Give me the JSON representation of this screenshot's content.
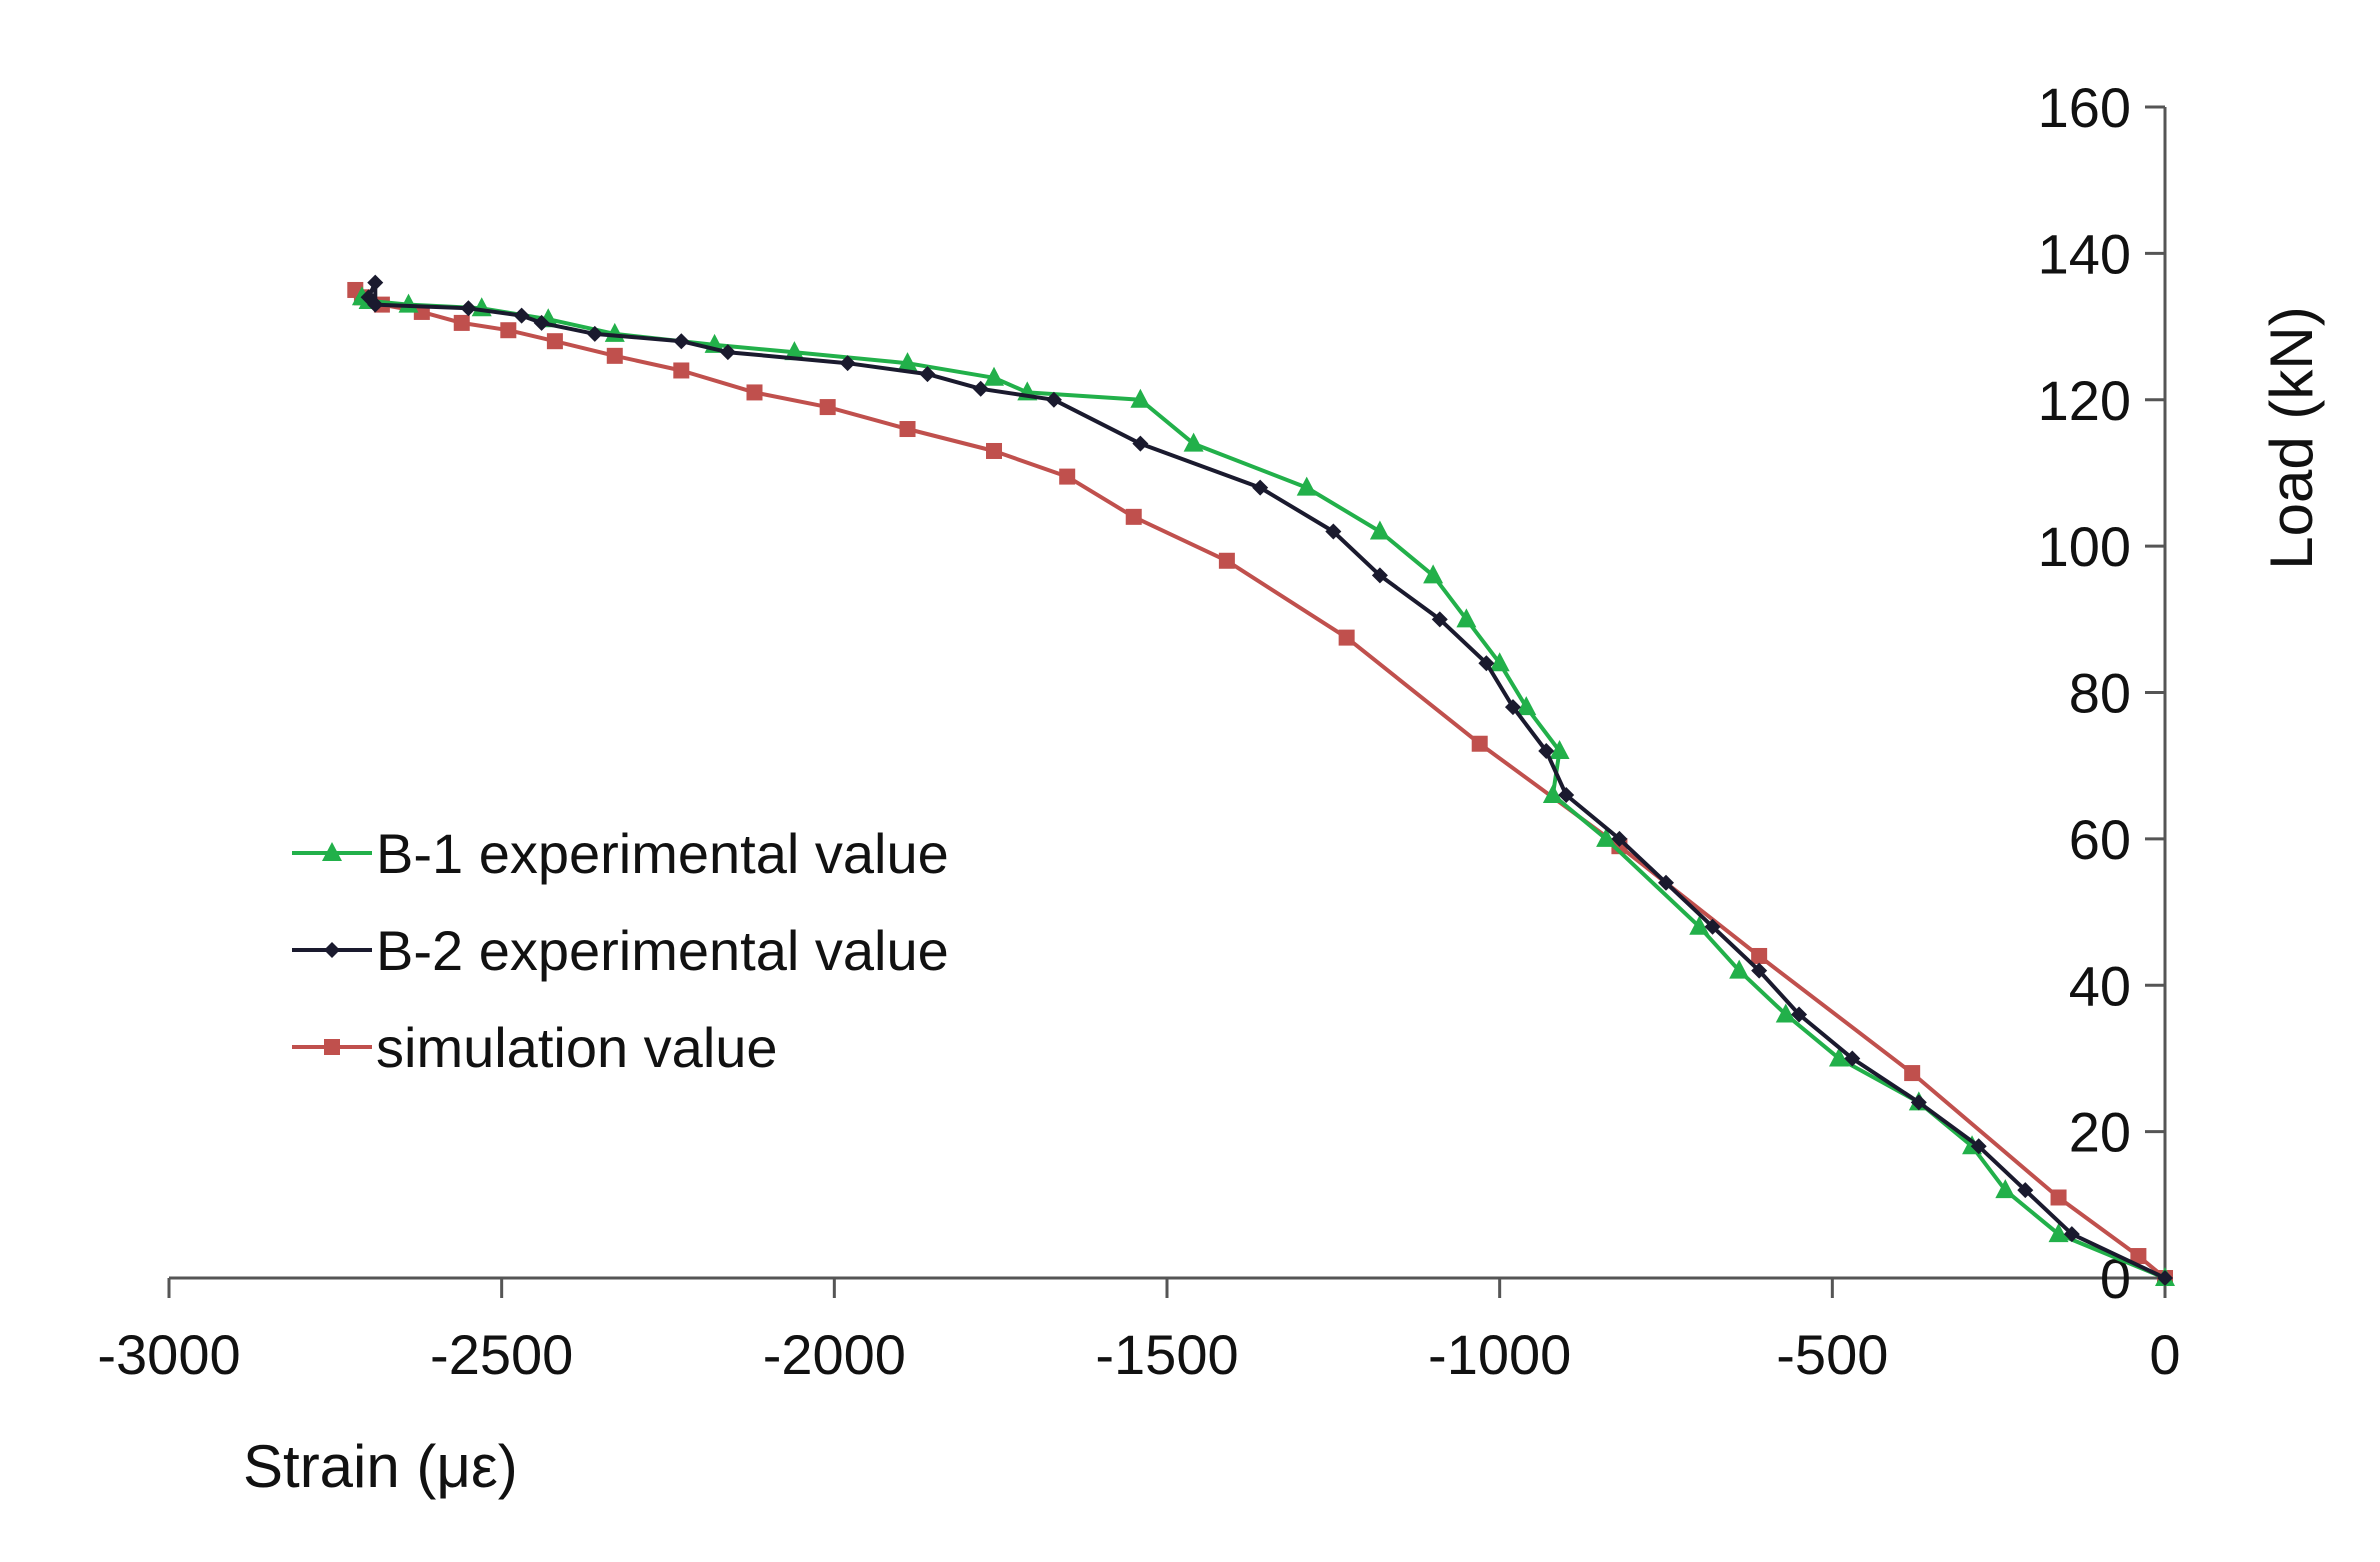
{
  "chart_data": {
    "type": "line",
    "title": "",
    "xlabel": "Strain (με)",
    "ylabel": "Load (kN)",
    "xlim": [
      -3000,
      0
    ],
    "ylim": [
      0,
      160
    ],
    "x_ticks": [
      "-3000",
      "-2500",
      "-2000",
      "-1500",
      "-1000",
      "-500",
      "0"
    ],
    "y_ticks": [
      "0",
      "20",
      "40",
      "60",
      "80",
      "100",
      "120",
      "140",
      "160"
    ],
    "grid": false,
    "legend_position": "left-middle",
    "series": [
      {
        "name": "B-1 experimental value",
        "color": "#22b04a",
        "marker": "triangle",
        "points": [
          [
            0,
            0
          ],
          [
            -160,
            6
          ],
          [
            -240,
            12
          ],
          [
            -290,
            18
          ],
          [
            -370,
            24
          ],
          [
            -490,
            30
          ],
          [
            -570,
            36
          ],
          [
            -640,
            42
          ],
          [
            -700,
            48
          ],
          [
            -840,
            60
          ],
          [
            -920,
            66
          ],
          [
            -910,
            72
          ],
          [
            -960,
            78
          ],
          [
            -1000,
            84
          ],
          [
            -1050,
            90
          ],
          [
            -1100,
            96
          ],
          [
            -1180,
            102
          ],
          [
            -1290,
            108
          ],
          [
            -1460,
            114
          ],
          [
            -1540,
            120
          ],
          [
            -1710,
            121
          ],
          [
            -1760,
            123
          ],
          [
            -1890,
            125
          ],
          [
            -2060,
            126.5
          ],
          [
            -2180,
            127.5
          ],
          [
            -2330,
            129
          ],
          [
            -2430,
            131
          ],
          [
            -2530,
            132.5
          ],
          [
            -2640,
            133
          ],
          [
            -2700,
            133.5
          ],
          [
            -2710,
            134
          ]
        ]
      },
      {
        "name": "B-2 experimental value",
        "color": "#1a1a2e",
        "marker": "diamond",
        "points": [
          [
            0,
            0
          ],
          [
            -140,
            6
          ],
          [
            -210,
            12
          ],
          [
            -280,
            18
          ],
          [
            -370,
            24
          ],
          [
            -470,
            30
          ],
          [
            -550,
            36
          ],
          [
            -610,
            42
          ],
          [
            -680,
            48
          ],
          [
            -750,
            54
          ],
          [
            -820,
            60
          ],
          [
            -900,
            66
          ],
          [
            -930,
            72
          ],
          [
            -980,
            78
          ],
          [
            -1020,
            84
          ],
          [
            -1090,
            90
          ],
          [
            -1180,
            96
          ],
          [
            -1250,
            102
          ],
          [
            -1360,
            108
          ],
          [
            -1540,
            114
          ],
          [
            -1670,
            120
          ],
          [
            -1780,
            121.5
          ],
          [
            -1860,
            123.5
          ],
          [
            -1980,
            125
          ],
          [
            -2160,
            126.5
          ],
          [
            -2230,
            128
          ],
          [
            -2360,
            129
          ],
          [
            -2440,
            130.5
          ],
          [
            -2470,
            131.5
          ],
          [
            -2550,
            132.5
          ],
          [
            -2690,
            133
          ],
          [
            -2690,
            136
          ],
          [
            -2700,
            134
          ]
        ]
      },
      {
        "name": "simulation value",
        "color": "#c0504d",
        "marker": "square",
        "points": [
          [
            0,
            0
          ],
          [
            -40,
            3
          ],
          [
            -160,
            11
          ],
          [
            -380,
            28
          ],
          [
            -610,
            44
          ],
          [
            -820,
            59
          ],
          [
            -1030,
            73
          ],
          [
            -1230,
            87.5
          ],
          [
            -1410,
            98
          ],
          [
            -1550,
            104
          ],
          [
            -1650,
            109.5
          ],
          [
            -1760,
            113
          ],
          [
            -1890,
            116
          ],
          [
            -2010,
            119
          ],
          [
            -2120,
            121
          ],
          [
            -2230,
            124
          ],
          [
            -2330,
            126
          ],
          [
            -2420,
            128
          ],
          [
            -2490,
            129.5
          ],
          [
            -2560,
            130.5
          ],
          [
            -2620,
            132
          ],
          [
            -2680,
            133
          ],
          [
            -2710,
            134
          ],
          [
            -2720,
            135
          ]
        ]
      }
    ]
  }
}
